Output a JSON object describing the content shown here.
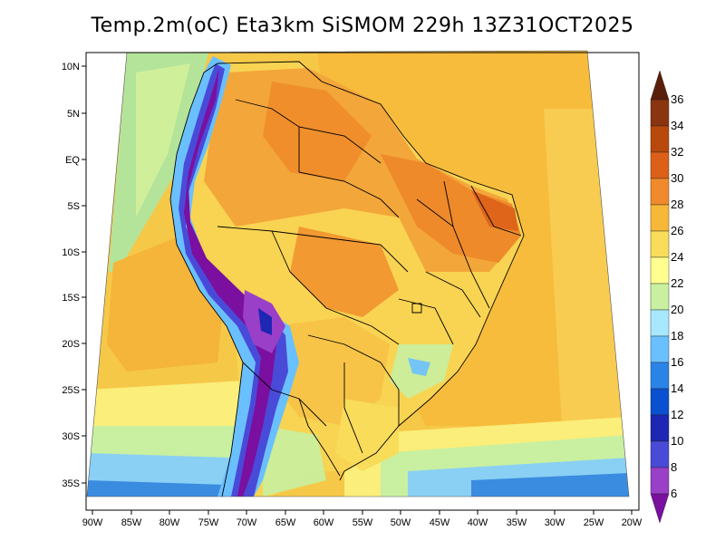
{
  "title": "Temp.2m(oC) Eta3km SiSMOM 229h 13Z31OCT2025",
  "lat_labels": [
    "10N",
    "5N",
    "EQ",
    "5S",
    "10S",
    "15S",
    "20S",
    "25S",
    "30S",
    "35S"
  ],
  "lon_labels": [
    "90W",
    "85W",
    "80W",
    "75W",
    "70W",
    "65W",
    "60W",
    "55W",
    "50W",
    "45W",
    "40W",
    "35W",
    "30W",
    "25W",
    "20W"
  ],
  "colorbar": {
    "labels": [
      "6",
      "8",
      "10",
      "12",
      "14",
      "16",
      "18",
      "20",
      "22",
      "24",
      "26",
      "28",
      "30",
      "32",
      "34",
      "36"
    ],
    "colors": [
      "#7a0fa0",
      "#9a3fc8",
      "#4a4ad8",
      "#1e26b4",
      "#0a50d0",
      "#2a84e8",
      "#6ac0ff",
      "#a8e8ff",
      "#c8f0a0",
      "#ffff90",
      "#f8dc5a",
      "#f7b83a",
      "#f08a2a",
      "#dc6018",
      "#b8480c",
      "#8a3410",
      "#5a1e0a"
    ]
  },
  "regions": [
    {
      "name": "ocean-atlantic",
      "color": "#f6bf3e"
    },
    {
      "name": "ocean-pacific-warm",
      "color": "#f6c848"
    },
    {
      "name": "ocean-cool-band",
      "color": "#fbee7a"
    },
    {
      "name": "ocean-south-blue",
      "color": "#8ad0f4"
    },
    {
      "name": "amazon",
      "color": "#f08a2a"
    },
    {
      "name": "andes",
      "color": "#6a1fa0"
    }
  ]
}
